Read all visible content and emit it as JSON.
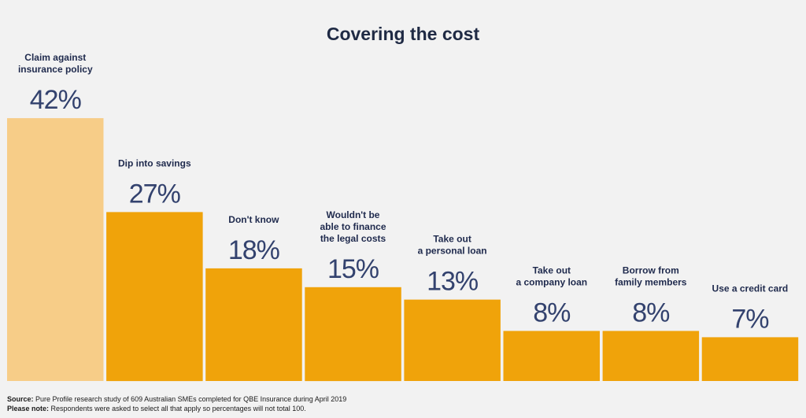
{
  "colors": {
    "background": "#f2f2f2",
    "bar": "#f0a30a",
    "bar_highlight": "#f7cd88",
    "title": "#1f2a44",
    "label": "#1f2a4d",
    "percent": "#33426e"
  },
  "chart_data": {
    "type": "bar",
    "title": "Covering the cost",
    "xlabel": "",
    "ylabel": "",
    "ylim": [
      0,
      42
    ],
    "grid": false,
    "categories": [
      [
        "Claim against",
        "insurance policy"
      ],
      [
        "Dip into savings"
      ],
      [
        "Don't know"
      ],
      [
        "Wouldn't be",
        "able to finance",
        "the legal costs"
      ],
      [
        "Take out",
        "a personal loan"
      ],
      [
        "Take out",
        "a company loan"
      ],
      [
        "Borrow from",
        "family members"
      ],
      [
        "Use a credit card"
      ]
    ],
    "values": [
      42,
      27,
      18,
      15,
      13,
      8,
      8,
      7
    ],
    "value_labels": [
      "42%",
      "27%",
      "18%",
      "15%",
      "13%",
      "8%",
      "8%",
      "7%"
    ],
    "highlight_index": 0
  },
  "footer": {
    "source_label": "Source:",
    "source_text": " Pure Profile research study of 609 Australian SMEs completed for QBE Insurance during April 2019",
    "note_label": "Please note:",
    "note_text": " Respondents were asked to select all that apply so percentages will not total 100."
  }
}
